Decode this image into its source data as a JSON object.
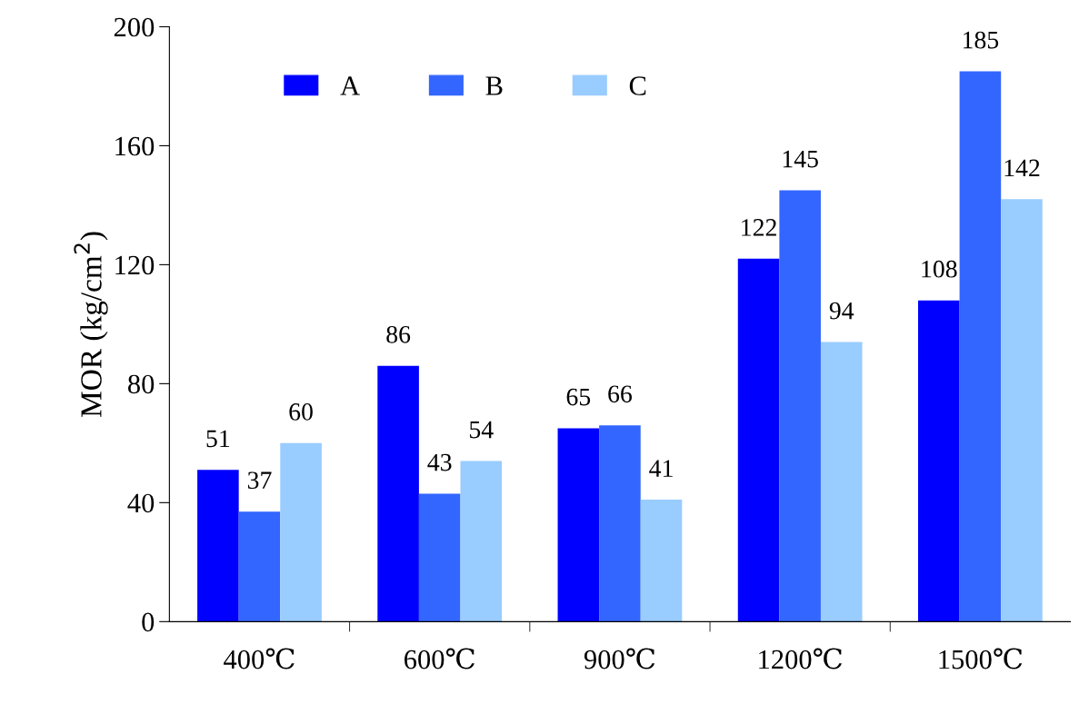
{
  "chart_data": {
    "type": "bar",
    "ylabel": "MOR (kg/cm$^{2}$)",
    "categories": [
      "400℃",
      "600℃",
      "900℃",
      "1200℃",
      "1500℃"
    ],
    "series": [
      {
        "name": "A",
        "color": "#0000ff",
        "values": [
          51,
          86,
          65,
          122,
          108
        ]
      },
      {
        "name": "B",
        "color": "#3366ff",
        "values": [
          37,
          43,
          66,
          145,
          185
        ]
      },
      {
        "name": "C",
        "color": "#99ccff",
        "values": [
          60,
          54,
          41,
          94,
          142
        ]
      }
    ],
    "ylim": [
      0,
      200
    ],
    "yticks": [
      0,
      40,
      80,
      120,
      160,
      200
    ],
    "data_labels": true,
    "legend": "top left",
    "grid": false
  }
}
